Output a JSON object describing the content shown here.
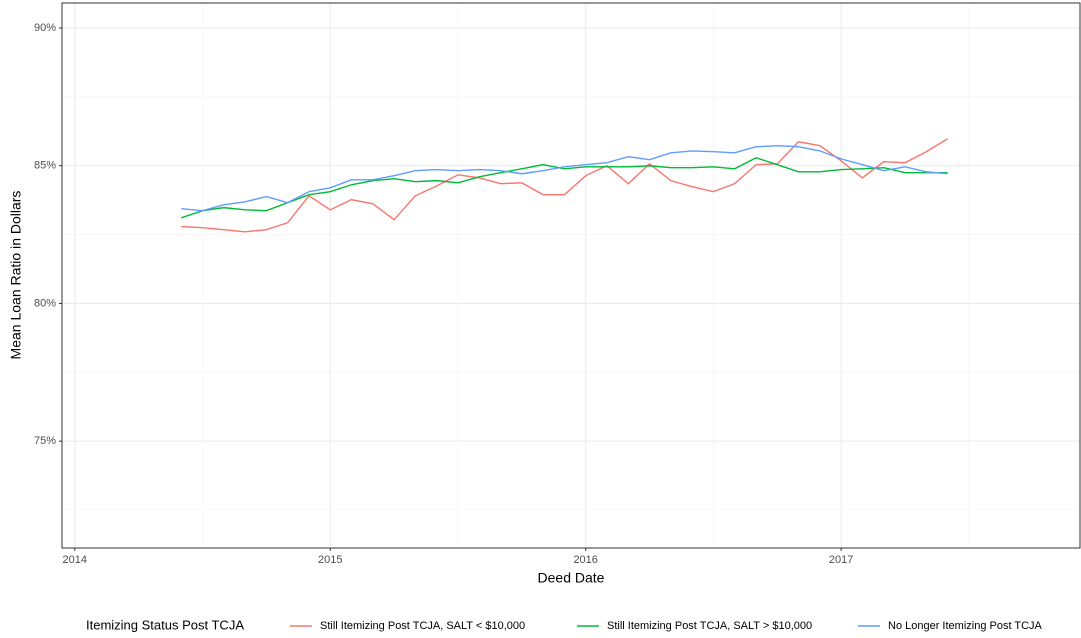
{
  "chart_data": {
    "type": "line",
    "x_label": "Deed Date",
    "y_label": "Mean Loan Ratio in Dollars",
    "legend_title": "Itemizing Status Post TCJA",
    "legend": "bottom",
    "grid": true,
    "xlim": [
      2013.95,
      2017.935
    ],
    "ylim": [
      71.12,
      90.91
    ],
    "xticks": [
      2014,
      2015,
      2016,
      2017
    ],
    "yticks": [
      {
        "value": 75,
        "label": "75%"
      },
      {
        "value": 80,
        "label": "80%"
      },
      {
        "value": 85,
        "label": "85%"
      },
      {
        "value": 90,
        "label": "90%"
      }
    ],
    "x": [
      2014.417,
      2014.5,
      2014.583,
      2014.667,
      2014.75,
      2014.833,
      2014.917,
      2015,
      2015.083,
      2015.167,
      2015.25,
      2015.333,
      2015.417,
      2015.5,
      2015.583,
      2015.667,
      2015.75,
      2015.833,
      2015.917,
      2016,
      2016.083,
      2016.167,
      2016.25,
      2016.333,
      2016.417,
      2016.5,
      2016.583,
      2016.667,
      2016.75,
      2016.833,
      2016.917,
      2017,
      2017.083,
      2017.167,
      2017.25,
      2017.333,
      2017.417
    ],
    "series": [
      {
        "name": "Still Itemizing Post TCJA, SALT < $10,000",
        "color": "#f8766d",
        "values": [
          82.79,
          82.75,
          82.68,
          82.6,
          82.68,
          82.93,
          83.91,
          83.4,
          83.77,
          83.62,
          83.04,
          83.91,
          84.27,
          84.67,
          84.56,
          84.35,
          84.38,
          83.95,
          83.95,
          84.64,
          85.0,
          84.35,
          85.07,
          84.46,
          84.24,
          84.06,
          84.35,
          85.04,
          85.07,
          85.87,
          85.73,
          85.18,
          84.56,
          85.15,
          85.11,
          85.51,
          85.98
        ]
      },
      {
        "name": "Still Itemizing Post TCJA, SALT > $10,000",
        "color": "#00ba38",
        "values": [
          83.11,
          83.37,
          83.48,
          83.4,
          83.37,
          83.66,
          83.95,
          84.06,
          84.31,
          84.46,
          84.53,
          84.42,
          84.46,
          84.38,
          84.6,
          84.75,
          84.89,
          85.04,
          84.89,
          84.96,
          84.96,
          84.96,
          85.0,
          84.93,
          84.93,
          84.96,
          84.89,
          85.29,
          85.04,
          84.78,
          84.78,
          84.86,
          84.89,
          84.93,
          84.75,
          84.75,
          84.75
        ]
      },
      {
        "name": "No Longer Itemizing Post TCJA",
        "color": "#619cff",
        "values": [
          83.44,
          83.37,
          83.58,
          83.69,
          83.88,
          83.66,
          84.06,
          84.2,
          84.49,
          84.49,
          84.64,
          84.82,
          84.86,
          84.82,
          84.86,
          84.82,
          84.71,
          84.82,
          84.96,
          85.04,
          85.11,
          85.33,
          85.22,
          85.47,
          85.54,
          85.51,
          85.47,
          85.69,
          85.73,
          85.69,
          85.54,
          85.25,
          85.04,
          84.82,
          84.96,
          84.78,
          84.71
        ]
      }
    ]
  }
}
